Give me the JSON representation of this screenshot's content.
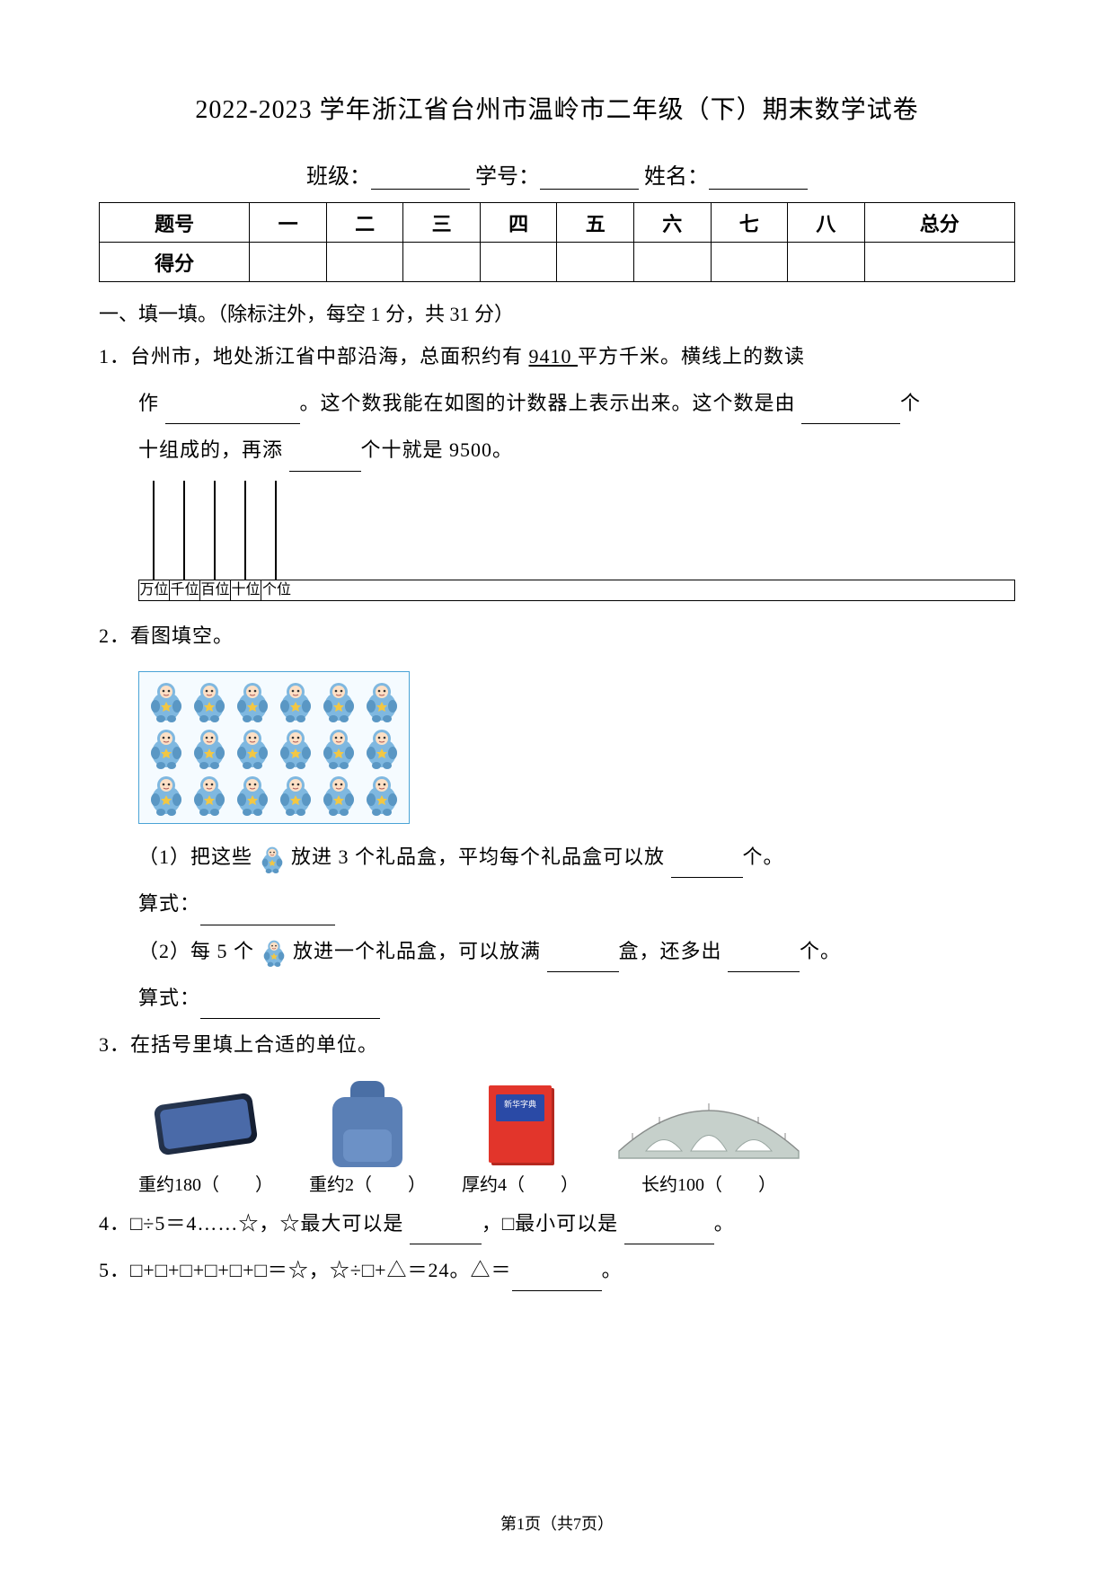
{
  "title": "2022-2023 学年浙江省台州市温岭市二年级（下）期末数学试卷",
  "header": {
    "class_label": "班级：",
    "id_label": "学号：",
    "name_label": "姓名："
  },
  "score_table": {
    "row1": [
      "题号",
      "一",
      "二",
      "三",
      "四",
      "五",
      "六",
      "七",
      "八",
      "总分"
    ],
    "row2_head": "得分"
  },
  "section1": "一、填一填。（除标注外，每空 1 分，共 31 分）",
  "q1": {
    "num": "1．",
    "line1a": "台州市，地处浙江省中部沿海，总面积约有 ",
    "underline_num": "9410 ",
    "line1b": "平方千米。横线上的数读",
    "line2a": "作 ",
    "line2b": "。这个数我能在如图的计数器上表示出来。这个数是由 ",
    "line2c": "个",
    "line3a": "十组成的，再添 ",
    "line3b": "个十就是 9500。"
  },
  "abacus_labels": [
    "万位",
    "千位",
    "百位",
    "十位",
    "个位"
  ],
  "q2": {
    "num": "2．",
    "title": "看图填空。",
    "doll_grid": {
      "rows": 3,
      "cols": 6
    },
    "p1a": "（1）把这些 ",
    "p1b": " 放进 3 个礼品盒，平均每个礼品盒可以放 ",
    "p1c": "个。",
    "eq_label": "算式：",
    "p2a": "（2）每 5 个 ",
    "p2b": " 放进一个礼品盒，可以放满 ",
    "p2c": "盒，还多出 ",
    "p2d": "个。"
  },
  "q3": {
    "num": "3．",
    "title": "在括号里填上合适的单位。",
    "items": [
      "重约180（　　）",
      "重约2（　　）",
      "厚约4（　　）",
      "长约100（　　）"
    ]
  },
  "q4": {
    "num": "4．",
    "text_a": "□÷5＝4……☆，☆最大可以是 ",
    "text_b": "，□最小可以是 ",
    "text_c": "。"
  },
  "q5": {
    "num": "5．",
    "text_a": "□+□+□+□+□+□＝☆，☆÷□+△＝24。△＝",
    "text_b": "。"
  },
  "footer": "第1页（共7页）",
  "svg_colors": {
    "doll_body": "#7fb8e0",
    "doll_body_dark": "#5a97c4",
    "doll_face": "#fde0c5",
    "doll_star": "#f2c744",
    "bridge_stroke": "#9aa7a2",
    "bridge_fill": "#c6d0cb"
  }
}
